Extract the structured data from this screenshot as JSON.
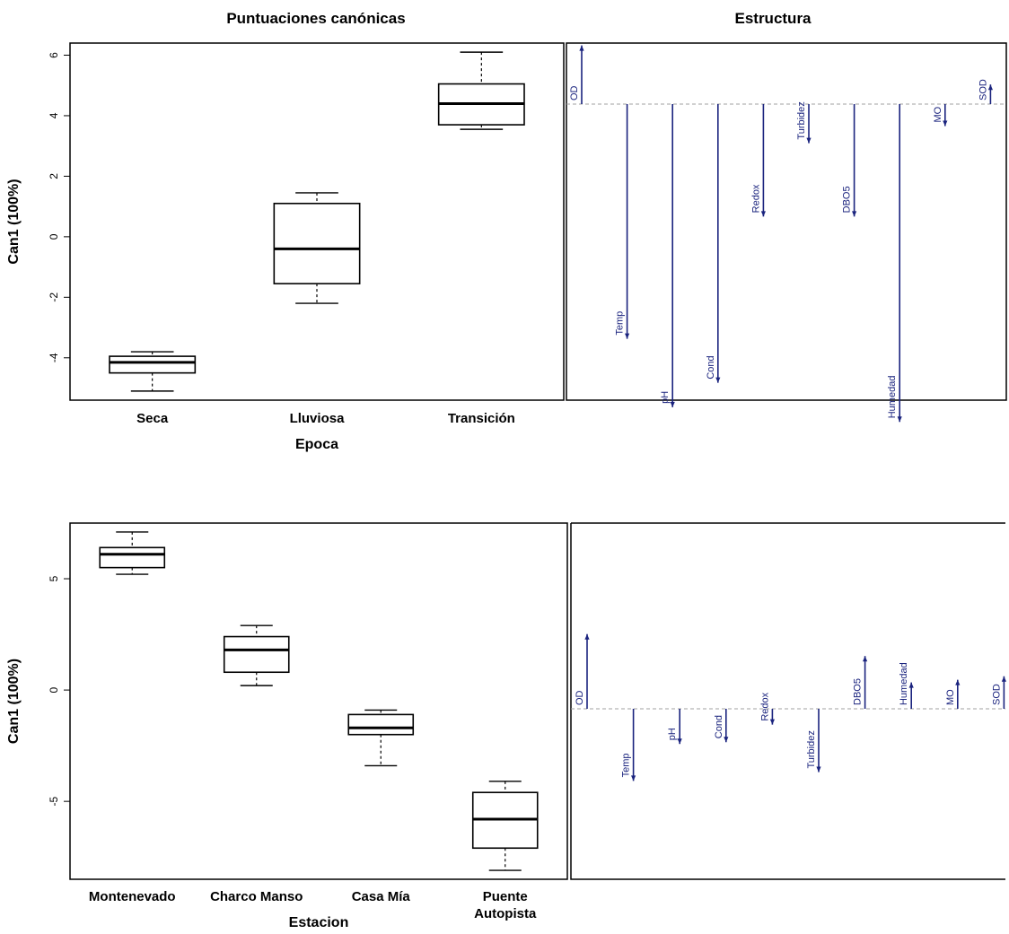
{
  "titles": {
    "left": "Puntuaciones canónicas",
    "right": "Estructura"
  },
  "colors": {
    "arrow": "#1a237e",
    "zero_line": "#a0a0a0",
    "box": "#000000"
  },
  "chart_data": [
    {
      "type": "box",
      "title": "Puntuaciones canónicas",
      "xlabel": "Epoca",
      "ylabel": "Can1 (100%)",
      "ylim": [
        -5.4,
        6.4
      ],
      "yticks": [
        "-4",
        "-2",
        "0",
        "2",
        "4",
        "6"
      ],
      "categories": [
        "Seca",
        "Lluviosa",
        "Transición"
      ],
      "boxes": [
        {
          "min": -5.1,
          "q1": -4.5,
          "median": -4.15,
          "q3": -3.95,
          "max": -3.8
        },
        {
          "min": -2.2,
          "q1": -1.55,
          "median": -0.4,
          "q3": 1.1,
          "max": 1.45
        },
        {
          "min": 3.55,
          "q1": 3.7,
          "median": 4.4,
          "q3": 5.05,
          "max": 6.1
        }
      ]
    },
    {
      "type": "bar",
      "title": "Estructura",
      "variables": [
        "OD",
        "Temp",
        "pH",
        "Cond",
        "Redox",
        "Turbidez",
        "DBO5",
        "Humedad",
        "MO",
        "SOD"
      ],
      "values": [
        0.12,
        -0.48,
        -0.62,
        -0.57,
        -0.23,
        -0.08,
        -0.23,
        -0.65,
        -0.045,
        0.04
      ],
      "ylim": [
        -0.7,
        0.15
      ]
    },
    {
      "type": "box",
      "xlabel": "Estacion",
      "ylabel": "Can1 (100%)",
      "ylim": [
        -8.5,
        7.5
      ],
      "yticks": [
        "-5",
        "0",
        "5"
      ],
      "categories": [
        "Montenevado",
        "Charco Manso",
        "Casa Mía",
        "Puente Autopista"
      ],
      "category_lines": [
        [
          "Montenevado"
        ],
        [
          "Charco Manso"
        ],
        [
          "Casa Mía"
        ],
        [
          "Puente",
          "Autopista"
        ]
      ],
      "boxes": [
        {
          "min": 5.2,
          "q1": 5.5,
          "median": 6.1,
          "q3": 6.4,
          "max": 7.1
        },
        {
          "min": 0.2,
          "q1": 0.8,
          "median": 1.8,
          "q3": 2.4,
          "max": 2.9
        },
        {
          "min": -3.4,
          "q1": -2.0,
          "median": -1.7,
          "q3": -1.1,
          "max": -0.9
        },
        {
          "min": -8.1,
          "q1": -7.1,
          "median": -5.8,
          "q3": -4.6,
          "max": -4.1
        }
      ]
    },
    {
      "type": "bar",
      "variables": [
        "OD",
        "Temp",
        "pH",
        "Cond",
        "Redox",
        "Turbidez",
        "DBO5",
        "Humedad",
        "MO",
        "SOD"
      ],
      "values": [
        0.85,
        -0.82,
        -0.4,
        -0.38,
        -0.18,
        -0.72,
        0.6,
        0.3,
        0.33,
        0.37
      ],
      "ylim": [
        -0.9,
        0.95
      ]
    }
  ]
}
